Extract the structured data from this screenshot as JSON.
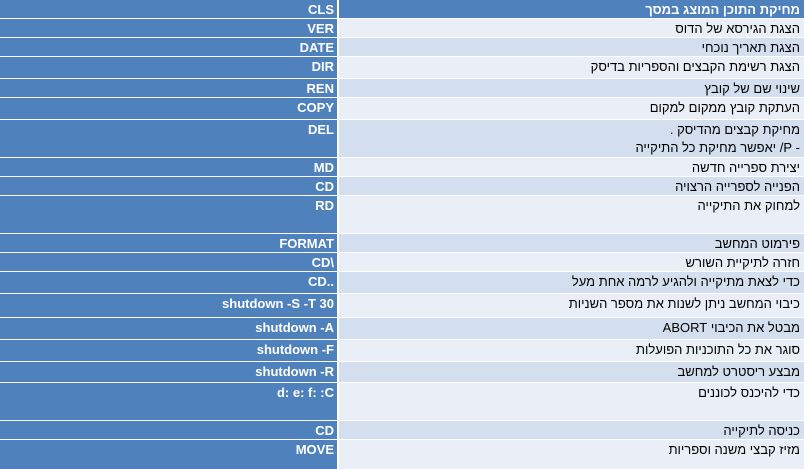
{
  "table": {
    "header": {
      "command": "CLS",
      "description": "מחיקת התוכן המוצג במסך"
    },
    "rows": [
      {
        "command": "VER",
        "description": "הצגת הגירסא של הדוס"
      },
      {
        "command": "DATE",
        "description": "הצגת תאריך נוכחי"
      },
      {
        "command": "DIR",
        "description": "הצגת רשימת הקבצים והספריות בדיסק"
      },
      {
        "command": "REN",
        "description": "שינוי שם של קובץ"
      },
      {
        "command": "COPY",
        "description": "העתקת קובץ ממקום למקום"
      },
      {
        "command": "DEL",
        "description": "מחיקת קבצים מהדיסק .",
        "description2": "- P/ יאפשר מחיקת כל התיקייה"
      },
      {
        "command": "MD",
        "description": "יצירת ספרייה חדשה"
      },
      {
        "command": "CD",
        "description": "הפנייה לספרייה הרצויה"
      },
      {
        "command": "RD",
        "description": "למחוק את התיקייה"
      },
      {
        "command": "FORMAT",
        "description": "פירמוט המחשב"
      },
      {
        "command": "CD\\",
        "description": "חזרה לתיקיית השורש"
      },
      {
        "command": "CD..",
        "description": "כדי לצאת מתיקייה ולהגיע לרמה אחת מעל"
      },
      {
        "command": "shutdown -S -T 30",
        "description": "כיבוי המחשב ניתן לשנות את מספר השניות"
      },
      {
        "command": "shutdown -A",
        "description": "מבטל את הכיבוי ABORT"
      },
      {
        "command": "shutdown -F",
        "description": "סוגר את כל התוכניות הפועלות"
      },
      {
        "command": "shutdown -R",
        "description": "מבצע ריסטרט למחשב"
      },
      {
        "command": "d: e: f: :C",
        "description": "כדי להיכנס לכוננים"
      },
      {
        "command": "CD",
        "description": "כניסה לתיקייה"
      },
      {
        "command": "MOVE",
        "description": "מזיז קבצי משנה וספריות"
      }
    ]
  },
  "colors": {
    "header_bg": "#4f81bd",
    "command_bg": "#4f81bd",
    "row_bg": "#d3dfee",
    "row_alt_bg": "#e9eef7"
  }
}
